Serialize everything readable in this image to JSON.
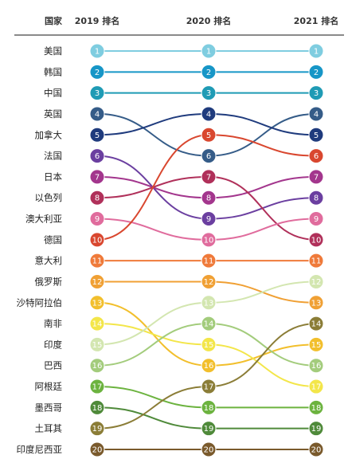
{
  "header": {
    "country_col": "国家",
    "years": [
      "2019 排名",
      "2020 排名",
      "2021 排名"
    ]
  },
  "chart_data": {
    "type": "bump",
    "title": "",
    "columns": [
      "2019 排名",
      "2020 排名",
      "2021 排名"
    ],
    "ranks_axis": [
      1,
      20
    ],
    "countries": [
      {
        "name": "美国",
        "ranks": [
          1,
          1,
          1
        ],
        "color": "#7fcde0"
      },
      {
        "name": "韩国",
        "ranks": [
          2,
          2,
          2
        ],
        "color": "#1796c7"
      },
      {
        "name": "中国",
        "ranks": [
          3,
          3,
          3
        ],
        "color": "#1f9bb5"
      },
      {
        "name": "英国",
        "ranks": [
          4,
          6,
          4
        ],
        "color": "#355c88"
      },
      {
        "name": "加拿大",
        "ranks": [
          5,
          4,
          5
        ],
        "color": "#1f3b7d"
      },
      {
        "name": "法国",
        "ranks": [
          6,
          9,
          8
        ],
        "color": "#6b3fa0"
      },
      {
        "name": "日本",
        "ranks": [
          7,
          8,
          7
        ],
        "color": "#a3368d"
      },
      {
        "name": "以色列",
        "ranks": [
          8,
          7,
          10
        ],
        "color": "#b0305a"
      },
      {
        "name": "澳大利亚",
        "ranks": [
          9,
          10,
          9
        ],
        "color": "#e06c9d"
      },
      {
        "name": "德国",
        "ranks": [
          10,
          5,
          6
        ],
        "color": "#d9472f"
      },
      {
        "name": "意大利",
        "ranks": [
          11,
          11,
          11
        ],
        "color": "#ef7a3a"
      },
      {
        "name": "俄罗斯",
        "ranks": [
          12,
          12,
          13
        ],
        "color": "#f0a034"
      },
      {
        "name": "沙特阿拉伯",
        "ranks": [
          13,
          16,
          15
        ],
        "color": "#f2bf2c"
      },
      {
        "name": "南非",
        "ranks": [
          14,
          15,
          17
        ],
        "color": "#f3e64a"
      },
      {
        "name": "印度",
        "ranks": [
          15,
          13,
          12
        ],
        "color": "#d3e6b0"
      },
      {
        "name": "巴西",
        "ranks": [
          16,
          14,
          16
        ],
        "color": "#a3cc7c"
      },
      {
        "name": "阿根廷",
        "ranks": [
          17,
          18,
          18
        ],
        "color": "#6cb33f"
      },
      {
        "name": "墨西哥",
        "ranks": [
          18,
          19,
          19
        ],
        "color": "#4f8a3a"
      },
      {
        "name": "土耳其",
        "ranks": [
          19,
          17,
          14
        ],
        "color": "#8b7d37"
      },
      {
        "name": "印度尼西亚",
        "ranks": [
          20,
          20,
          20
        ],
        "color": "#7a5a2c"
      }
    ]
  }
}
